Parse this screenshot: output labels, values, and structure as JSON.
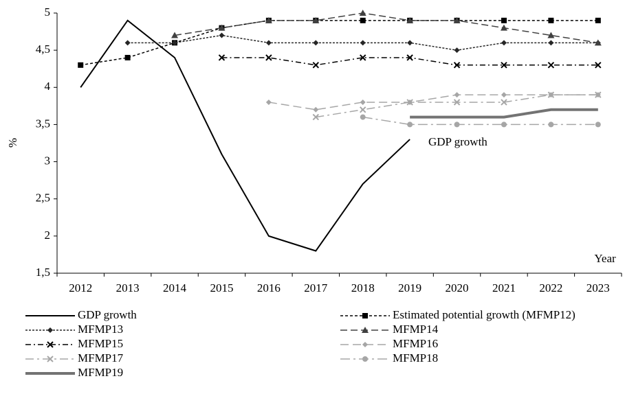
{
  "chart_data": {
    "type": "line",
    "y_label": "%",
    "x_label": "Year",
    "annotation": "GDP growth",
    "categories": [
      "2012",
      "2013",
      "2014",
      "2015",
      "2016",
      "2017",
      "2018",
      "2019",
      "2020",
      "2021",
      "2022",
      "2023"
    ],
    "ylim": [
      1.5,
      5
    ],
    "yticks": [
      {
        "value": 1.5,
        "label": "1,5"
      },
      2,
      {
        "value": 2.5,
        "label": "2,5"
      },
      3,
      {
        "value": 3.5,
        "label": "3,5"
      },
      4,
      {
        "value": 4.5,
        "label": "4,5"
      },
      5
    ],
    "series": [
      {
        "name": "GDP growth",
        "color": "#000000",
        "width": 2,
        "dash": "none",
        "marker": "none",
        "values": [
          4.0,
          4.9,
          4.4,
          3.1,
          2.0,
          1.8,
          2.7,
          3.3,
          null,
          null,
          null,
          null
        ]
      },
      {
        "name": "Estimated potential growth (MFMP12)",
        "color": "#000000",
        "width": 1.5,
        "dash": "4,3",
        "marker": "square",
        "values": [
          4.3,
          4.4,
          4.6,
          4.8,
          4.9,
          4.9,
          4.9,
          4.9,
          4.9,
          4.9,
          4.9,
          4.9
        ]
      },
      {
        "name": "MFMP13",
        "color": "#262626",
        "width": 1.5,
        "dash": "3,2",
        "marker": "diamond",
        "values": [
          null,
          4.6,
          4.6,
          4.7,
          4.6,
          4.6,
          4.6,
          4.6,
          4.5,
          4.6,
          4.6,
          4.6
        ]
      },
      {
        "name": "MFMP14",
        "color": "#404040",
        "width": 1.5,
        "dash": "10,5",
        "marker": "triangle",
        "values": [
          null,
          null,
          4.7,
          4.8,
          4.9,
          4.9,
          5.0,
          4.9,
          4.9,
          4.8,
          4.7,
          4.6
        ]
      },
      {
        "name": "MFMP15",
        "color": "#000000",
        "width": 1.5,
        "dash": "8,4,2,4",
        "marker": "x",
        "values": [
          null,
          null,
          null,
          4.4,
          4.4,
          4.3,
          4.4,
          4.4,
          4.3,
          4.3,
          4.3,
          4.3
        ]
      },
      {
        "name": "MFMP16",
        "color": "#a6a6a6",
        "width": 1.5,
        "dash": "12,6",
        "marker": "diamond",
        "values": [
          null,
          null,
          null,
          null,
          3.8,
          3.7,
          3.8,
          3.8,
          3.9,
          3.9,
          3.9,
          3.9
        ]
      },
      {
        "name": "MFMP17",
        "color": "#a6a6a6",
        "width": 1.5,
        "dash": "12,5,3,5",
        "marker": "x",
        "values": [
          null,
          null,
          null,
          null,
          null,
          3.6,
          3.7,
          3.8,
          3.8,
          3.8,
          3.9,
          3.9
        ]
      },
      {
        "name": "MFMP18",
        "color": "#a6a6a6",
        "width": 1.5,
        "dash": "14,5,3,5",
        "marker": "circle",
        "values": [
          null,
          null,
          null,
          null,
          null,
          null,
          3.6,
          3.5,
          3.5,
          3.5,
          3.5,
          3.5
        ]
      },
      {
        "name": "MFMP19",
        "color": "#737373",
        "width": 4,
        "dash": "none",
        "marker": "none",
        "values": [
          null,
          null,
          null,
          null,
          null,
          null,
          null,
          3.6,
          3.6,
          3.6,
          3.7,
          3.7
        ]
      }
    ]
  }
}
